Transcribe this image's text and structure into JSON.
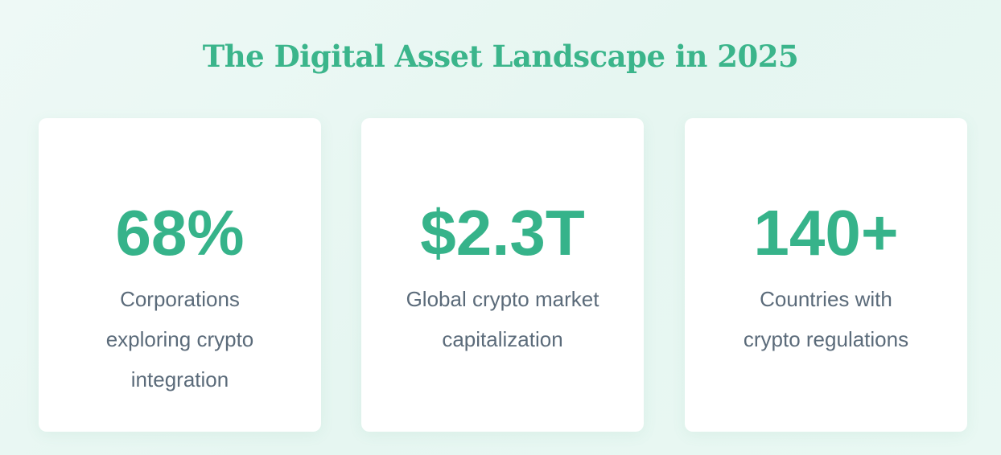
{
  "title": "The Digital Asset Landscape in 2025",
  "stats": [
    {
      "value": "68%",
      "label": "Corporations exploring crypto integration"
    },
    {
      "value": "$2.3T",
      "label": "Global crypto market capitalization"
    },
    {
      "value": "140+",
      "label": "Countries with crypto regulations"
    }
  ],
  "colors": {
    "accent": "#36b38a",
    "text": "#5b6b7a"
  }
}
